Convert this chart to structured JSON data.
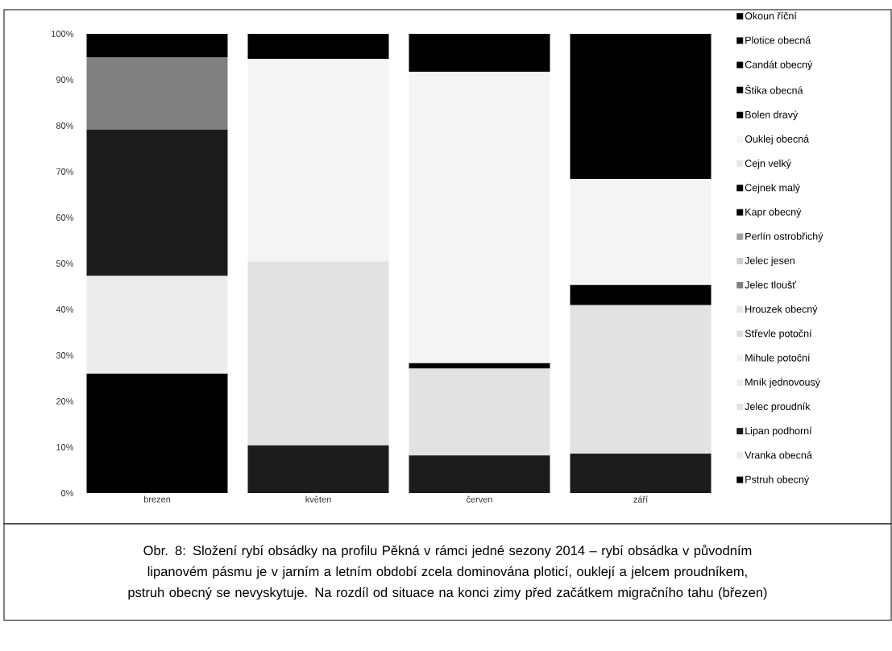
{
  "chart_data": {
    "type": "bar",
    "stacked": true,
    "categories": [
      "brezen",
      "květen",
      "červen",
      "září"
    ],
    "series": [
      {
        "name": "Pstruh obecný",
        "color": "#000000",
        "values": [
          26,
          0,
          0,
          0
        ]
      },
      {
        "name": "Vranka obecná",
        "color": "#ececec",
        "values": [
          21.3,
          0,
          0,
          0
        ]
      },
      {
        "name": "Lipan podhorní",
        "color": "#1c1c1c",
        "values": [
          31.8,
          10.4,
          8.2,
          8.6
        ]
      },
      {
        "name": "Jelec proudník",
        "color": "#e2e2e2",
        "values": [
          0,
          40,
          18.9,
          32.3
        ]
      },
      {
        "name": "Mník jednovousý",
        "color": "#eeeeee",
        "values": [
          0,
          0,
          0,
          0
        ]
      },
      {
        "name": "Mihule potoční",
        "color": "#f0f0f0",
        "values": [
          0,
          0,
          0,
          0
        ]
      },
      {
        "name": "Střevle potoční",
        "color": "#dddddd",
        "values": [
          0,
          0,
          0,
          0
        ]
      },
      {
        "name": "Hrouzek obecný",
        "color": "#e8e8e8",
        "values": [
          0,
          0,
          0,
          0
        ]
      },
      {
        "name": "Jelec tloušť",
        "color": "#808080",
        "values": [
          15.8,
          0,
          0,
          0
        ]
      },
      {
        "name": "Jelec jesen",
        "color": "#cccccc",
        "values": [
          0,
          0,
          0,
          0
        ]
      },
      {
        "name": "Perlín ostrobřichý",
        "color": "#a0a0a0",
        "values": [
          0,
          0,
          0,
          0
        ]
      },
      {
        "name": "Kapr obecný",
        "color": "#000000",
        "values": [
          0,
          0,
          0,
          4.4
        ]
      },
      {
        "name": "Cejnek malý",
        "color": "#000000",
        "values": [
          0,
          0,
          1.2,
          0
        ]
      },
      {
        "name": "Cejn velký",
        "color": "#e6e6e6",
        "values": [
          0,
          0,
          0,
          0
        ]
      },
      {
        "name": "Ouklej obecná",
        "color": "#f4f4f4",
        "values": [
          0,
          44.1,
          63.4,
          23.1
        ]
      },
      {
        "name": "Bolen dravý",
        "color": "#000000",
        "values": [
          0,
          0,
          0,
          0
        ]
      },
      {
        "name": "Štika obecná",
        "color": "#000000",
        "values": [
          0,
          0,
          0,
          0
        ]
      },
      {
        "name": "Candát obecný",
        "color": "#000000",
        "values": [
          0,
          0,
          0,
          0
        ]
      },
      {
        "name": "Plotice obecná",
        "color": "#000000",
        "values": [
          0,
          0,
          0,
          31.6
        ]
      },
      {
        "name": "Okoun říční",
        "color": "#000000",
        "values": [
          5.1,
          5.5,
          8.3,
          0
        ]
      }
    ],
    "ylim": [
      0,
      100
    ],
    "yticks": [
      {
        "value": 0,
        "label": "0%"
      },
      {
        "value": 10,
        "label": "10%"
      },
      {
        "value": 20,
        "label": "20%"
      },
      {
        "value": 30,
        "label": "30%"
      },
      {
        "value": 40,
        "label": "40%"
      },
      {
        "value": 50,
        "label": "50%"
      },
      {
        "value": 60,
        "label": "60%"
      },
      {
        "value": 70,
        "label": "70%"
      },
      {
        "value": 80,
        "label": "80%"
      },
      {
        "value": 90,
        "label": "90%"
      },
      {
        "value": 100,
        "label": "100%"
      }
    ],
    "legend": "right",
    "annotations": [
      "Obr. 8: Složení rybí obsádky na profilu Pěkná v rámci jedné sezony 2014 – rybí obsádka v původním lipanovém pásmu je v jarním a letním období zcela dominována ploticí, ouklejí a jelcem proudníkem, pstruh obecný se nevyskytuje. Na rozdíl od situace na konci zimy před začátkem migračního tahu (březen)"
    ]
  }
}
